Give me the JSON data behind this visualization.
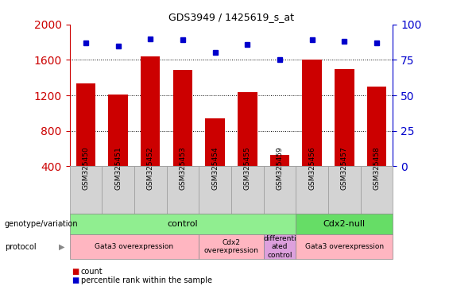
{
  "title": "GDS3949 / 1425619_s_at",
  "samples": [
    "GSM325450",
    "GSM325451",
    "GSM325452",
    "GSM325453",
    "GSM325454",
    "GSM325455",
    "GSM325459",
    "GSM325456",
    "GSM325457",
    "GSM325458"
  ],
  "counts": [
    1330,
    1210,
    1640,
    1490,
    940,
    1240,
    530,
    1600,
    1500,
    1300
  ],
  "percentile_ranks": [
    87,
    85,
    90,
    89,
    80,
    86,
    75,
    89,
    88,
    87
  ],
  "bar_color": "#CC0000",
  "dot_color": "#0000CC",
  "ylim_left": [
    400,
    2000
  ],
  "ylim_right": [
    0,
    100
  ],
  "yticks_left": [
    400,
    800,
    1200,
    1600,
    2000
  ],
  "yticks_right": [
    0,
    25,
    50,
    75,
    100
  ],
  "grid_lines": [
    800,
    1200,
    1600
  ],
  "genotype_groups": [
    {
      "label": "control",
      "start": 0,
      "end": 7,
      "color": "#90EE90"
    },
    {
      "label": "Cdx2-null",
      "start": 7,
      "end": 10,
      "color": "#66DD66"
    }
  ],
  "protocol_groups": [
    {
      "label": "Gata3 overexpression",
      "start": 0,
      "end": 4,
      "color": "#FFB6C1"
    },
    {
      "label": "Cdx2\noverexpression",
      "start": 4,
      "end": 6,
      "color": "#FFB6C1"
    },
    {
      "label": "differenti\nated\ncontrol",
      "start": 6,
      "end": 7,
      "color": "#DDA0DD"
    },
    {
      "label": "Gata3 overexpression",
      "start": 7,
      "end": 10,
      "color": "#FFB6C1"
    }
  ],
  "left_axis_color": "#CC0000",
  "right_axis_color": "#0000CC",
  "sample_box_color": "#D3D3D3",
  "sample_box_edge": "#999999"
}
